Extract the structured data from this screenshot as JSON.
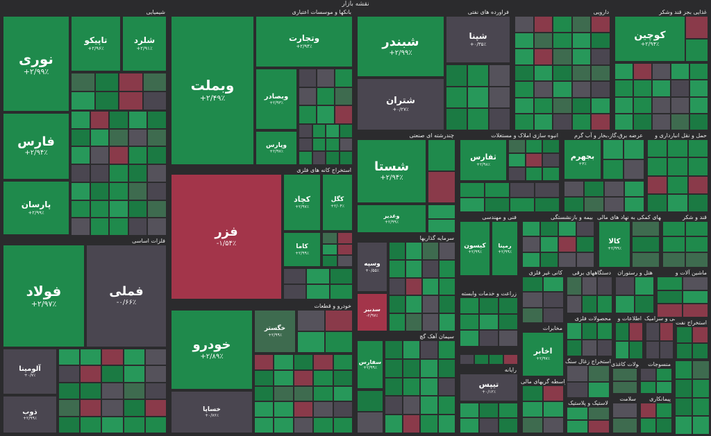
{
  "title": "نقشه بازار",
  "sections": {
    "chemicals": "شیمیایی",
    "banks": "بانکها و موسسات اعتباری",
    "oil": "فراورده های نفتی",
    "pharma": "دارویی",
    "food": "غذایی بجز قند وشکر",
    "metal_ext": "استخراج کانه های فلزی",
    "basic_metals": "فلزات اساسی",
    "auto": "خودرو و قطعات",
    "multi": "چندرشته ای صنعتی",
    "realestate": "انبوه سازی املاک و مستغلات",
    "utility": "عرضه برق،گاز،بخار و آب گرم",
    "transport": "حمل و نقل انبارداری و",
    "tech": "فنی و مهندسی",
    "insurance": "بیمه و بازنشستگی",
    "finance_aux": "فعالیتهای کمکی به نهاد های مالی",
    "wood": "قند و شکر",
    "investment": "سرمایه گذاریها",
    "agri": "زراعت و خدمات وابسته",
    "nonmetal": "کانی غیر فلزی",
    "electric": "دستگاههای برقی",
    "hotel": "هتل و رستوران",
    "machinery": "ماشین آلات و",
    "ceramic": "کاشی و سرامیک",
    "metal_prod": "محصولات فلزی",
    "info": "اطلاعات و",
    "cement": "سیمان آهک گچ",
    "computer": "رایانه",
    "paper": "محصولات کاغذی",
    "leasing": "واسطه گریهای مالی",
    "coal": "استخراج زغال سنگ",
    "rubber": "لاستیک و پلاستیک",
    "oil_ext": "استخراج نفت",
    "tile_mfg": "منسوجات",
    "comm": "مخابرات",
    "pmp": "پیمانکاری",
    "ff": "سلامت"
  },
  "tiles": [
    {
      "id": "nori",
      "name": "نوری",
      "pct": "+۲/۹۹٪"
    },
    {
      "id": "fars",
      "name": "فارس",
      "pct": "+۲/۹۴٪"
    },
    {
      "id": "parsan",
      "name": "پارسان",
      "pct": "+۲/۹۹٪"
    },
    {
      "id": "tapiko",
      "name": "تاپیکو",
      "pct": "+۲/۹۶٪"
    },
    {
      "id": "shland",
      "name": "شلرد",
      "pct": "+۲/۹۱٪"
    },
    {
      "id": "vbemellat",
      "name": "وبملت",
      "pct": "+۲/۴۹٪"
    },
    {
      "id": "vtejarat",
      "name": "وتجارت",
      "pct": "+۲/۹۴٪"
    },
    {
      "id": "vbsader",
      "name": "وبصادر",
      "pct": "+۲/۹۳٪"
    },
    {
      "id": "vpars",
      "name": "وپارس",
      "pct": "+۲/۹۷٪"
    },
    {
      "id": "shbandar",
      "name": "شبندر",
      "pct": "+۲/۹۹٪"
    },
    {
      "id": "shtran",
      "name": "شتران",
      "pct": "+۰/۲۷٪"
    },
    {
      "id": "shpna",
      "name": "شپنا",
      "pct": "+۰/۳۵٪"
    },
    {
      "id": "kouchin",
      "name": "کوچین",
      "pct": "+۲/۹۴٪"
    },
    {
      "id": "fazar",
      "name": "فزر",
      "pct": "-۱/۵۴٪"
    },
    {
      "id": "kchad",
      "name": "کچاد",
      "pct": "+۲/۹۷٪"
    },
    {
      "id": "kgol",
      "name": "کگل",
      "pct": "+۲/۰۴٪"
    },
    {
      "id": "kama",
      "name": "کاما",
      "pct": "+۲/۹۹٪"
    },
    {
      "id": "foolad",
      "name": "فولاد",
      "pct": "+۲/۹۷٪"
    },
    {
      "id": "fameli",
      "name": "فملی",
      "pct": "-۰/۶۶٪"
    },
    {
      "id": "khodro",
      "name": "خودرو",
      "pct": "+۲/۸۹٪"
    },
    {
      "id": "khsapa",
      "name": "خساپا",
      "pct": "+۰/۷۶٪"
    },
    {
      "id": "khgostar",
      "name": "خگستر",
      "pct": "+۲/۹۹٪"
    },
    {
      "id": "shasta",
      "name": "شستا",
      "pct": "+۲/۹۴٪"
    },
    {
      "id": "tfars",
      "name": "ثفارس",
      "pct": "+۲/۹۸٪"
    },
    {
      "id": "bejahrom",
      "name": "بجهرم",
      "pct": "+۳٪"
    },
    {
      "id": "kala",
      "name": "کالا",
      "pct": "+۲/۹۹٪"
    },
    {
      "id": "vasapa",
      "name": "وسپه",
      "pct": "+۰/۵۵٪"
    },
    {
      "id": "sadbir",
      "name": "سدبیر",
      "pct": "-۲/۹۷٪"
    },
    {
      "id": "akhaber",
      "name": "اخابر",
      "pct": "+۲/۹۷٪"
    },
    {
      "id": "tapis",
      "name": "تیپس",
      "pct": "+۰/۱۲٪"
    },
    {
      "id": "aluminium",
      "name": "آلومینا",
      "pct": "+۰/۷٪"
    },
    {
      "id": "zob",
      "name": "ذوب",
      "pct": "+۲/۹۹٪"
    },
    {
      "id": "kisun",
      "name": "کیسون",
      "pct": "+۲/۹۹٪"
    },
    {
      "id": "remapna",
      "name": "رمپنا",
      "pct": "+۲/۹۹٪"
    },
    {
      "id": "sefarsi",
      "name": "سفارس",
      "pct": "+۲/۹۹٪"
    },
    {
      "id": "vebsr",
      "name": "وغدیر",
      "pct": "+۲/۹۹٪"
    }
  ]
}
